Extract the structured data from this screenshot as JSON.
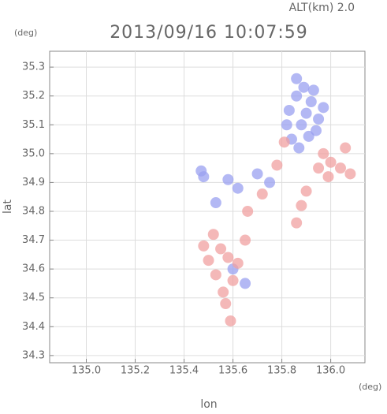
{
  "chart_data": {
    "type": "scatter",
    "title": "2013/09/16 10:07:59",
    "subtitle": "ALT(km) 2.0",
    "x_label": "lon",
    "y_label": "lat",
    "x_unit": "(deg)",
    "y_unit": "(deg)",
    "xlim": [
      134.85,
      136.14
    ],
    "ylim": [
      34.275,
      35.355
    ],
    "xticks": [
      {
        "value": 135.0,
        "label": "135.0"
      },
      135.2,
      135.4,
      135.6,
      135.8,
      {
        "value": 136.0,
        "label": "136.0"
      }
    ],
    "yticks": [
      34.3,
      34.4,
      34.5,
      34.6,
      34.7,
      34.8,
      34.9,
      {
        "value": 35.0,
        "label": "35.0"
      },
      35.1,
      35.2,
      35.3
    ],
    "grid": true,
    "series": [
      {
        "color": "#9aa0f0",
        "x": [
          135.83,
          135.86,
          135.89,
          135.92,
          135.95,
          135.88,
          135.91,
          135.84,
          135.97,
          135.86,
          135.9,
          135.94,
          135.82,
          135.47,
          135.48,
          135.58,
          135.62,
          135.7,
          135.75,
          135.53,
          135.6,
          135.65,
          135.87,
          135.93
        ],
        "y": [
          35.15,
          35.2,
          35.23,
          35.18,
          35.12,
          35.1,
          35.06,
          35.05,
          35.16,
          35.26,
          35.14,
          35.08,
          35.1,
          34.94,
          34.92,
          34.91,
          34.88,
          34.93,
          34.9,
          34.83,
          34.6,
          34.55,
          35.02,
          35.22
        ]
      },
      {
        "color": "#f0a0a0",
        "x": [
          135.97,
          136.0,
          136.04,
          136.08,
          135.99,
          135.95,
          135.9,
          135.88,
          135.86,
          136.06,
          135.52,
          135.55,
          135.58,
          135.5,
          135.62,
          135.6,
          135.56,
          135.53,
          135.65,
          135.66,
          135.72,
          135.78,
          135.81,
          135.48,
          135.59,
          135.57
        ],
        "y": [
          35.0,
          34.97,
          34.95,
          34.93,
          34.92,
          34.95,
          34.87,
          34.82,
          34.76,
          35.02,
          34.72,
          34.67,
          34.64,
          34.63,
          34.62,
          34.56,
          34.52,
          34.58,
          34.7,
          34.8,
          34.86,
          34.96,
          35.04,
          34.68,
          34.42,
          34.48
        ]
      }
    ]
  }
}
